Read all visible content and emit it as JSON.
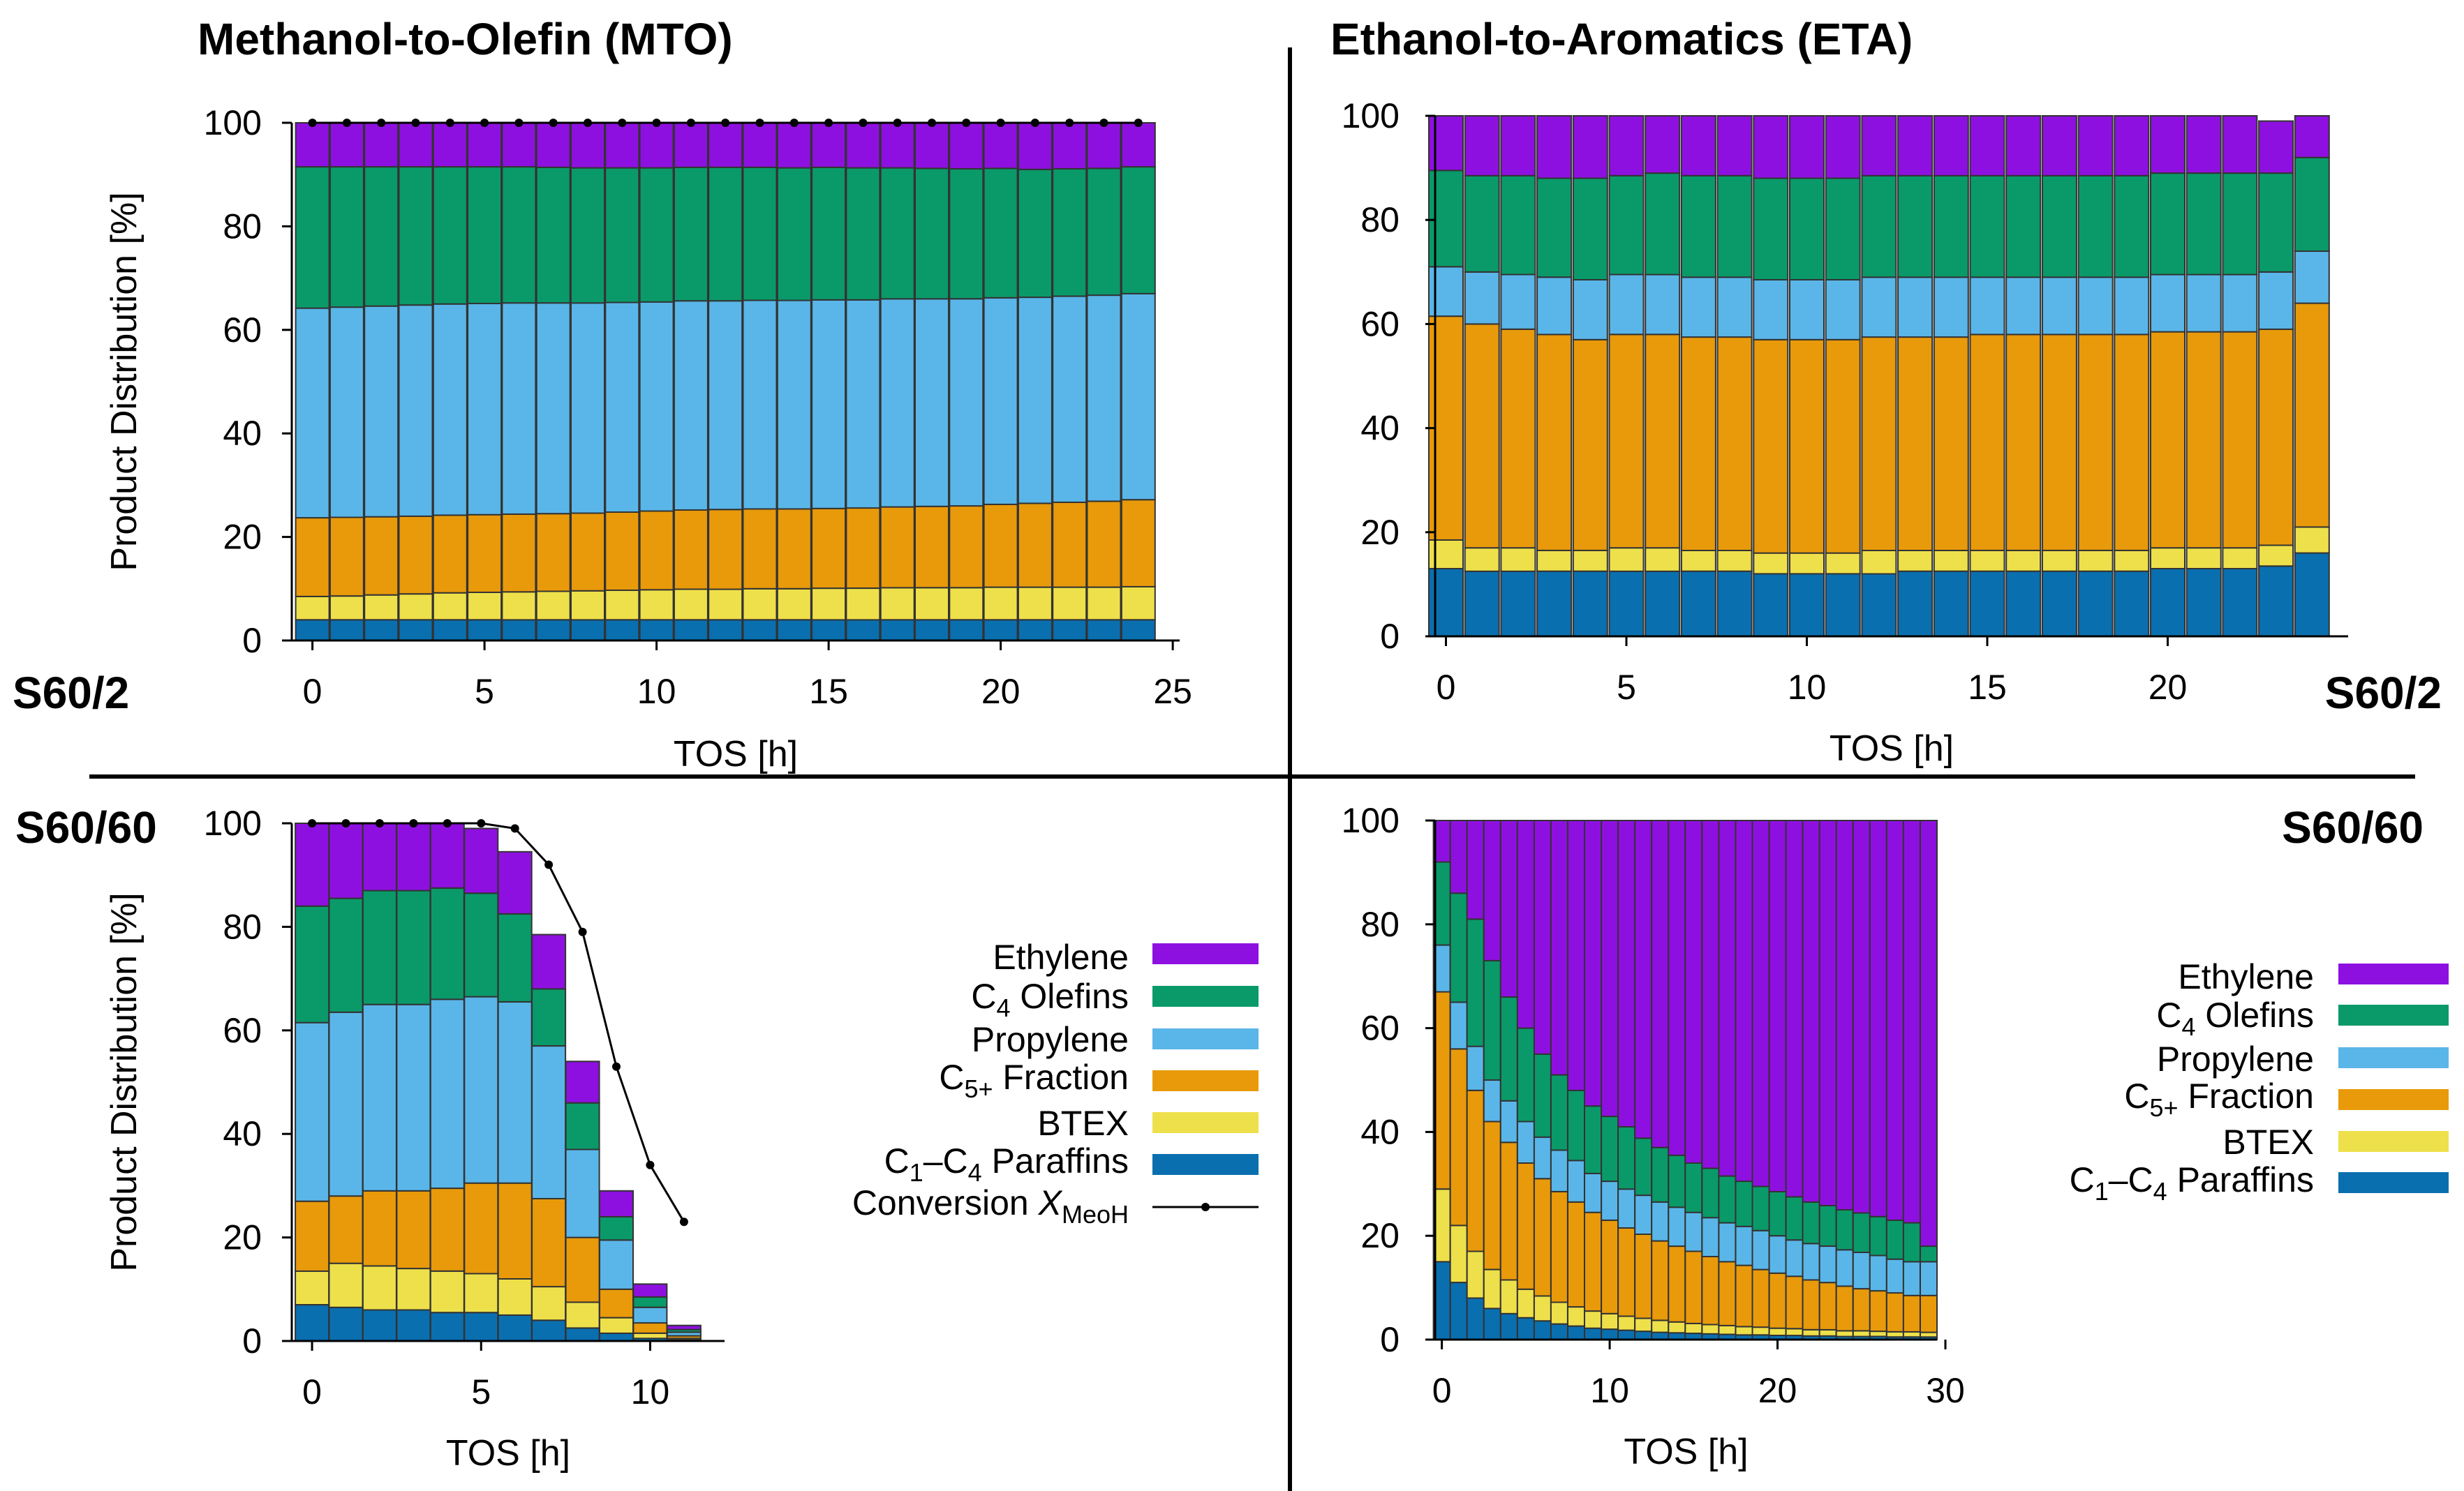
{
  "colors": {
    "ethylene": "#8e10e0",
    "c4_olefins": "#0a9a6a",
    "propylene": "#5ab6e8",
    "c5_fraction": "#e89a0a",
    "btex": "#eee04a",
    "paraffins": "#0a6faf"
  },
  "legend": {
    "ethylene": "Ethylene",
    "c4_pre": "C",
    "c4_sub": "4",
    "c4_post": " Olefins",
    "propylene": "Propylene",
    "c5_pre": "C",
    "c5_sub": "5+",
    "c5_post": " Fraction",
    "btex": "BTEX",
    "par_pre": "C",
    "par_sub1": "1",
    "par_mid": "–C",
    "par_sub2": "4",
    "par_post": " Paraffins",
    "conv_pre": "Conversion ",
    "conv_x": "X",
    "conv_sub": "MeoH"
  },
  "chart_data": [
    {
      "id": "mto_s60_2",
      "type": "bar",
      "stacked": true,
      "title": "Methanol-to-Olefin (MTO)",
      "tag": "S60/2",
      "xlabel": "TOS [h]",
      "ylabel": "Product Distribution [%]",
      "xlim": [
        -0.6,
        25.2
      ],
      "ylim": [
        0,
        100
      ],
      "xticks": [
        0,
        5,
        10,
        15,
        20,
        25
      ],
      "yticks": [
        0,
        20,
        40,
        60,
        80,
        100
      ],
      "x": [
        0,
        1,
        2,
        3,
        4,
        5,
        6,
        7,
        8,
        9,
        10,
        11,
        12,
        13,
        14,
        15,
        16,
        17,
        18,
        19,
        20,
        21,
        22,
        23,
        24
      ],
      "series": [
        {
          "name": "C1–C4 Paraffins",
          "key": "paraffins",
          "values": [
            4.0,
            4.0,
            4.0,
            4.0,
            4.0,
            4.0,
            4.0,
            4.0,
            4.0,
            4.0,
            4.0,
            4.0,
            4.0,
            4.0,
            4.0,
            4.0,
            4.0,
            4.0,
            4.0,
            4.0,
            4.0,
            4.0,
            4.0,
            4.0,
            4.0
          ]
        },
        {
          "name": "BTEX",
          "key": "btex",
          "values": [
            4.5,
            4.6,
            4.8,
            5.0,
            5.2,
            5.3,
            5.4,
            5.5,
            5.6,
            5.7,
            5.8,
            5.9,
            5.9,
            6.0,
            6.0,
            6.1,
            6.1,
            6.2,
            6.2,
            6.2,
            6.3,
            6.3,
            6.3,
            6.3,
            6.4
          ]
        },
        {
          "name": "C5+ Fraction",
          "key": "c5_fraction",
          "values": [
            15.2,
            15.2,
            15.1,
            15.0,
            15.0,
            15.0,
            15.0,
            15.0,
            15.0,
            15.1,
            15.2,
            15.3,
            15.4,
            15.4,
            15.4,
            15.4,
            15.5,
            15.6,
            15.7,
            15.8,
            16.0,
            16.2,
            16.4,
            16.6,
            16.8
          ]
        },
        {
          "name": "Propylene",
          "key": "propylene",
          "values": [
            40.5,
            40.6,
            40.7,
            40.8,
            40.8,
            40.8,
            40.8,
            40.7,
            40.6,
            40.5,
            40.4,
            40.4,
            40.3,
            40.3,
            40.3,
            40.3,
            40.2,
            40.2,
            40.1,
            40.0,
            39.9,
            39.8,
            39.8,
            39.8,
            39.8
          ]
        },
        {
          "name": "C4 Olefins",
          "key": "c4_olefins",
          "values": [
            27.3,
            27.1,
            26.9,
            26.7,
            26.5,
            26.4,
            26.3,
            26.2,
            26.1,
            26.0,
            25.9,
            25.8,
            25.8,
            25.7,
            25.6,
            25.6,
            25.5,
            25.3,
            25.2,
            25.1,
            25.0,
            24.7,
            24.6,
            24.5,
            24.5
          ]
        },
        {
          "name": "Ethylene",
          "key": "ethylene",
          "values": [
            8.5,
            8.5,
            8.5,
            8.5,
            8.5,
            8.5,
            8.5,
            8.6,
            8.7,
            8.7,
            8.7,
            8.6,
            8.6,
            8.6,
            8.7,
            8.6,
            8.7,
            8.7,
            8.8,
            8.9,
            8.8,
            9.0,
            8.9,
            8.8,
            8.5
          ]
        }
      ],
      "conversion": {
        "x": [
          0,
          1,
          2,
          3,
          4,
          5,
          6,
          7,
          8,
          9,
          10,
          11,
          12,
          13,
          14,
          15,
          16,
          17,
          18,
          19,
          20,
          21,
          22,
          23,
          24
        ],
        "values": [
          100,
          100,
          100,
          100,
          100,
          100,
          100,
          100,
          100,
          100,
          100,
          100,
          100,
          100,
          100,
          100,
          100,
          100,
          100,
          100,
          100,
          100,
          100,
          100,
          100
        ]
      }
    },
    {
      "id": "eta_s60_2",
      "type": "bar",
      "stacked": true,
      "title": "Ethanol-to-Aromatics (ETA)",
      "tag": "S60/2",
      "xlabel": "TOS [h]",
      "ylabel": "",
      "xlim": [
        -0.3,
        25.0
      ],
      "ylim": [
        0,
        100
      ],
      "xticks": [
        0,
        5,
        10,
        15,
        20
      ],
      "yticks": [
        0,
        20,
        40,
        60,
        80,
        100
      ],
      "x": [
        0,
        1,
        2,
        3,
        4,
        5,
        6,
        7,
        8,
        9,
        10,
        11,
        12,
        13,
        14,
        15,
        16,
        17,
        18,
        19,
        20,
        21,
        22,
        23,
        24
      ],
      "series": [
        {
          "name": "C1–C4 Paraffins",
          "key": "paraffins",
          "values": [
            13.0,
            12.5,
            12.5,
            12.5,
            12.5,
            12.5,
            12.5,
            12.5,
            12.5,
            12.0,
            12.0,
            12.0,
            12.0,
            12.5,
            12.5,
            12.5,
            12.5,
            12.5,
            12.5,
            12.5,
            13.0,
            13.0,
            13.0,
            13.5,
            16.0
          ]
        },
        {
          "name": "BTEX",
          "key": "btex",
          "values": [
            5.5,
            4.5,
            4.5,
            4.0,
            4.0,
            4.5,
            4.5,
            4.0,
            4.0,
            4.0,
            4.0,
            4.0,
            4.5,
            4.0,
            4.0,
            4.0,
            4.0,
            4.0,
            4.0,
            4.0,
            4.0,
            4.0,
            4.0,
            4.0,
            5.0
          ]
        },
        {
          "name": "C5+ Fraction",
          "key": "c5_fraction",
          "values": [
            43.0,
            43.0,
            42.0,
            41.5,
            40.5,
            41.0,
            41.0,
            41.0,
            41.0,
            41.0,
            41.0,
            41.0,
            41.0,
            41.0,
            41.0,
            41.5,
            41.5,
            41.5,
            41.5,
            41.5,
            41.5,
            41.5,
            41.5,
            41.5,
            43.0
          ]
        },
        {
          "name": "Propylene",
          "key": "propylene",
          "values": [
            9.5,
            10.0,
            10.5,
            11.0,
            11.5,
            11.5,
            11.5,
            11.5,
            11.5,
            11.5,
            11.5,
            11.5,
            11.5,
            11.5,
            11.5,
            11.0,
            11.0,
            11.0,
            11.0,
            11.0,
            11.0,
            11.0,
            11.0,
            11.0,
            10.0
          ]
        },
        {
          "name": "C4 Olefins",
          "key": "c4_olefins",
          "values": [
            18.5,
            18.5,
            19.0,
            19.0,
            19.5,
            19.0,
            19.5,
            19.5,
            19.5,
            19.5,
            19.5,
            19.5,
            19.5,
            19.5,
            19.5,
            19.5,
            19.5,
            19.5,
            19.5,
            19.5,
            19.5,
            19.5,
            19.5,
            19.0,
            18.0
          ]
        },
        {
          "name": "Ethylene",
          "key": "ethylene",
          "values": [
            10.5,
            11.5,
            11.5,
            12.0,
            12.0,
            11.5,
            11.0,
            11.5,
            11.5,
            12.0,
            12.0,
            12.0,
            11.5,
            11.5,
            11.5,
            11.5,
            11.5,
            11.5,
            11.5,
            11.5,
            11.0,
            11.0,
            11.0,
            10.0,
            8.0
          ]
        }
      ]
    },
    {
      "id": "mto_s60_60",
      "type": "bar",
      "stacked": true,
      "title": "",
      "tag": "S60/60",
      "xlabel": "TOS [h]",
      "ylabel": "Product Distribution [%]",
      "xlim": [
        -0.6,
        12.2
      ],
      "ylim": [
        0,
        100
      ],
      "xticks": [
        0,
        5,
        10
      ],
      "yticks": [
        0,
        20,
        40,
        60,
        80,
        100
      ],
      "x": [
        0,
        1,
        2,
        3,
        4,
        5,
        6,
        7,
        8,
        9,
        10,
        11
      ],
      "series": [
        {
          "name": "C1–C4 Paraffins",
          "key": "paraffins",
          "values": [
            7.0,
            6.5,
            6.0,
            6.0,
            5.5,
            5.5,
            5.0,
            4.0,
            2.5,
            1.5,
            0.5,
            0.2
          ]
        },
        {
          "name": "BTEX",
          "key": "btex",
          "values": [
            6.5,
            8.5,
            8.5,
            8.0,
            8.0,
            7.5,
            7.0,
            6.5,
            5.0,
            3.0,
            1.0,
            0.3
          ]
        },
        {
          "name": "C5+ Fraction",
          "key": "c5_fraction",
          "values": [
            13.5,
            13.0,
            14.5,
            15.0,
            16.0,
            17.5,
            18.5,
            17.0,
            12.5,
            5.5,
            2.0,
            0.5
          ]
        },
        {
          "name": "Propylene",
          "key": "propylene",
          "values": [
            34.5,
            35.5,
            36.0,
            36.0,
            36.5,
            36.0,
            35.0,
            29.5,
            17.0,
            9.5,
            3.0,
            0.7
          ]
        },
        {
          "name": "C4 Olefins",
          "key": "c4_olefins",
          "values": [
            22.5,
            22.0,
            22.0,
            22.0,
            21.5,
            20.0,
            17.0,
            11.0,
            9.0,
            4.5,
            2.0,
            0.5
          ]
        },
        {
          "name": "Ethylene",
          "key": "ethylene",
          "values": [
            16.0,
            14.5,
            13.0,
            13.0,
            12.5,
            12.5,
            12.0,
            10.5,
            8.0,
            5.0,
            2.5,
            0.8
          ]
        }
      ],
      "conversion": {
        "x": [
          0,
          1,
          2,
          3,
          4,
          5,
          6,
          7,
          8,
          9,
          10,
          11
        ],
        "values": [
          100,
          100,
          100,
          100,
          100,
          100,
          99,
          92,
          79,
          53,
          34,
          23
        ]
      }
    },
    {
      "id": "eta_s60_60",
      "type": "bar",
      "stacked": true,
      "title": "",
      "tag": "S60/60",
      "xlabel": "TOS [h]",
      "ylabel": "",
      "xlim": [
        -0.4,
        29.5
      ],
      "ylim": [
        0,
        100
      ],
      "xticks": [
        0,
        10,
        20,
        30
      ],
      "yticks": [
        0,
        20,
        40,
        60,
        80,
        100
      ],
      "x": [
        0,
        1,
        2,
        3,
        4,
        5,
        6,
        7,
        8,
        9,
        10,
        11,
        12,
        13,
        14,
        15,
        16,
        17,
        18,
        19,
        20,
        21,
        22,
        23,
        24,
        25,
        26,
        27,
        28,
        29
      ],
      "series": [
        {
          "name": "C1–C4 Paraffins",
          "key": "paraffins",
          "values": [
            15.0,
            11.0,
            8.0,
            6.0,
            5.0,
            4.2,
            3.6,
            3.0,
            2.6,
            2.2,
            2.0,
            1.8,
            1.6,
            1.4,
            1.3,
            1.2,
            1.1,
            1.0,
            0.9,
            0.9,
            0.8,
            0.8,
            0.7,
            0.7,
            0.6,
            0.6,
            0.6,
            0.5,
            0.5,
            0.5
          ]
        },
        {
          "name": "BTEX",
          "key": "btex",
          "values": [
            14.0,
            11.0,
            9.0,
            7.5,
            6.5,
            5.5,
            4.8,
            4.2,
            3.7,
            3.3,
            3.0,
            2.7,
            2.5,
            2.3,
            2.1,
            1.9,
            1.8,
            1.7,
            1.6,
            1.5,
            1.4,
            1.3,
            1.2,
            1.2,
            1.1,
            1.1,
            1.0,
            1.0,
            1.0,
            0.9
          ]
        },
        {
          "name": "C5+ Fraction",
          "key": "c5_fraction",
          "values": [
            38.0,
            34.0,
            31.0,
            28.5,
            26.5,
            24.3,
            22.6,
            21.3,
            20.2,
            19.0,
            18.0,
            17.0,
            16.2,
            15.3,
            14.6,
            13.9,
            13.1,
            12.3,
            11.8,
            11.1,
            10.6,
            10.1,
            9.6,
            9.1,
            8.6,
            8.1,
            7.8,
            7.5,
            7.0,
            7.1
          ]
        },
        {
          "name": "Propylene",
          "key": "propylene",
          "values": [
            9.0,
            9.0,
            8.5,
            8.0,
            8.0,
            8.0,
            8.0,
            8.0,
            8.0,
            7.5,
            7.5,
            7.5,
            7.5,
            7.5,
            7.5,
            7.5,
            7.5,
            7.5,
            7.5,
            7.5,
            7.2,
            7.0,
            7.0,
            7.0,
            7.0,
            7.0,
            6.8,
            6.5,
            6.5,
            6.5
          ]
        },
        {
          "name": "C4 Olefins",
          "key": "c4_olefins",
          "values": [
            16.0,
            21.0,
            24.5,
            23.0,
            20.0,
            18.0,
            16.0,
            14.5,
            13.5,
            13.0,
            12.5,
            12.0,
            11.0,
            10.5,
            10.0,
            9.5,
            9.5,
            9.0,
            8.7,
            8.5,
            8.5,
            8.3,
            8.0,
            7.8,
            7.7,
            7.6,
            7.5,
            7.5,
            7.5,
            3.0
          ]
        },
        {
          "name": "Ethylene",
          "key": "ethylene",
          "values": [
            8.0,
            14.0,
            19.0,
            27.0,
            34.0,
            40.0,
            45.0,
            49.0,
            52.0,
            55.0,
            57.0,
            59.0,
            61.2,
            63.0,
            64.5,
            66.0,
            67.0,
            68.5,
            69.5,
            70.5,
            71.5,
            72.5,
            73.5,
            74.2,
            75.0,
            75.6,
            76.3,
            77.0,
            77.5,
            82.0
          ]
        }
      ]
    }
  ]
}
